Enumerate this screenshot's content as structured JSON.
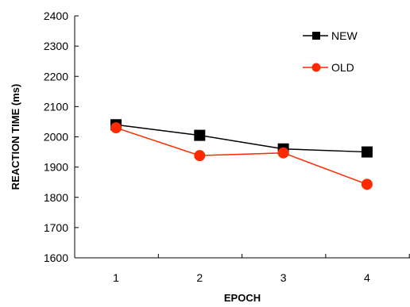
{
  "chart_data": {
    "type": "line",
    "title": "",
    "xlabel": "EPOCH",
    "ylabel": "REACTION TIME (ms)",
    "categories": [
      "1",
      "2",
      "3",
      "4"
    ],
    "ylim": [
      1600,
      2400
    ],
    "yticks": [
      1600,
      1700,
      1800,
      1900,
      2000,
      2100,
      2200,
      2300,
      2400
    ],
    "grid": false,
    "legend_position": "top-right",
    "series": [
      {
        "name": "NEW",
        "values": [
          2040,
          2005,
          1960,
          1950
        ],
        "color": "#000000",
        "marker": "square"
      },
      {
        "name": "OLD",
        "values": [
          2030,
          1938,
          1947,
          1843
        ],
        "color": "#ff2a00",
        "marker": "circle"
      }
    ]
  }
}
